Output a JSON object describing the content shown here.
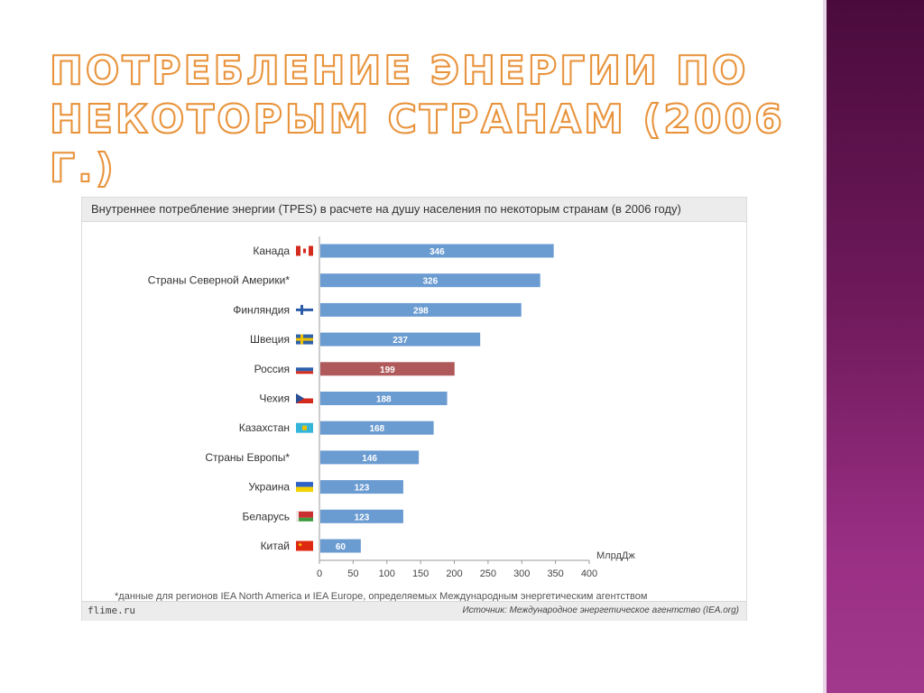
{
  "slide": {
    "title": "ПОТРЕБЛЕНИЕ ЭНЕРГИИ ПО НЕКОТОРЫМ СТРАНАМ (2006 Г.)"
  },
  "chart_data": {
    "type": "bar",
    "orientation": "horizontal",
    "title": "Внутреннее потребление энергии (TPES) в расчете на душу населения по некоторым странам (в 2006 году)",
    "xlabel": "МлрдДж",
    "categories": [
      "Канада",
      "Страны Северной Америки*",
      "Финляндия",
      "Швеция",
      "Россия",
      "Чехия",
      "Казахстан",
      "Страны Европы*",
      "Украина",
      "Беларусь",
      "Китай"
    ],
    "values": [
      346,
      326,
      298,
      237,
      199,
      188,
      168,
      146,
      123,
      123,
      60
    ],
    "highlight_category": "Россия",
    "xlim": [
      0,
      400
    ],
    "xticks": [
      0,
      50,
      100,
      150,
      200,
      250,
      300,
      350,
      400
    ],
    "legend": "none",
    "grid": false,
    "colors": {
      "bar": "#6a9bd1",
      "highlight": "#b0595a"
    },
    "footnote": "*данные для регионов IEA North America и IEA Europe, определяемых Международным энергетическим агентством",
    "source": "Источник: Международное энергетическое агентство (IEA.org)",
    "site": "flime.ru"
  },
  "flags": [
    "canada-flag",
    "north-america-flag",
    "finland-flag",
    "sweden-flag",
    "russia-flag",
    "czech-flag",
    "kazakhstan-flag",
    "europe-flag",
    "ukraine-flag",
    "belarus-flag",
    "china-flag"
  ]
}
